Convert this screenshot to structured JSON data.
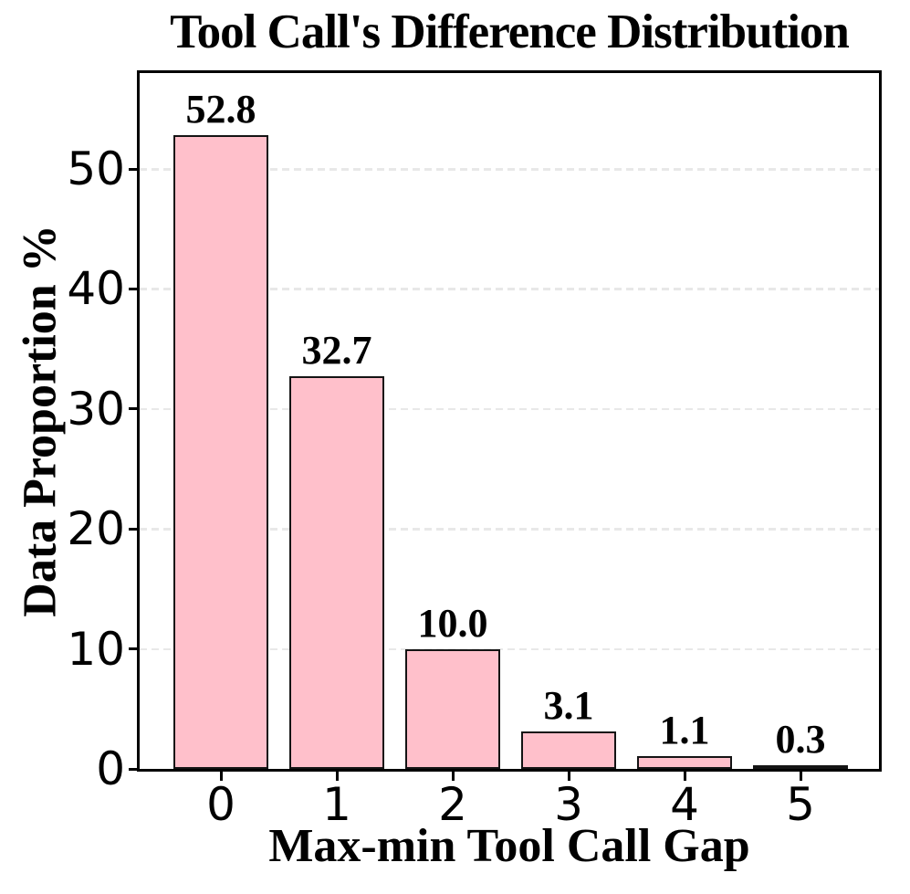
{
  "chart_data": {
    "type": "bar",
    "title": "Tool Call's Difference Distribution",
    "xlabel": "Max-min Tool Call Gap",
    "ylabel": "Data Proportion %",
    "categories": [
      "0",
      "1",
      "2",
      "3",
      "4",
      "5"
    ],
    "values": [
      52.8,
      32.7,
      10.0,
      3.1,
      1.1,
      0.3
    ],
    "value_labels": [
      "52.8",
      "32.7",
      "10.0",
      "3.1",
      "1.1",
      "0.3"
    ],
    "yticks": [
      0,
      10,
      20,
      30,
      40,
      50
    ],
    "ylim": [
      0,
      58
    ],
    "grid": "horizontal-dashed",
    "legend": "none",
    "colors": {
      "bar_fill": "#ffc0cb",
      "bar_edge": "#141414",
      "grid_color": "#e8e8e8",
      "text_color": "#000000",
      "spine_color": "#000000"
    }
  }
}
